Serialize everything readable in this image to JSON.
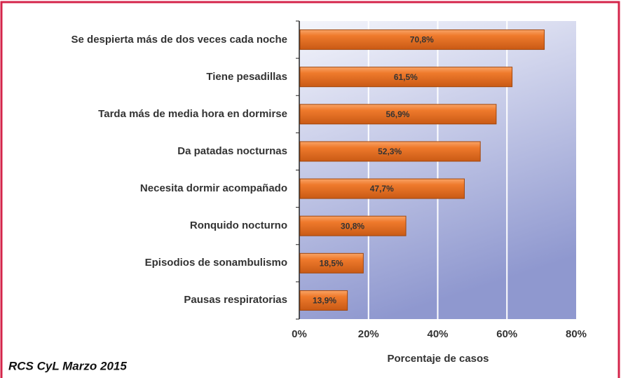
{
  "chart_data": {
    "type": "bar",
    "orientation": "horizontal",
    "categories": [
      "Se despierta más de dos veces cada noche",
      "Tiene pesadillas",
      "Tarda más de media hora en dormirse",
      "Da patadas nocturnas",
      "Necesita dormir acompañado",
      "Ronquido nocturno",
      "Episodios de sonambulismo",
      "Pausas respiratorias"
    ],
    "values": [
      70.8,
      61.5,
      56.9,
      52.3,
      47.7,
      30.8,
      18.5,
      13.9
    ],
    "value_labels": [
      "70,8%",
      "61,5%",
      "56,9%",
      "52,3%",
      "47,7%",
      "30,8%",
      "18,5%",
      "13,9%"
    ],
    "color": "#ef7a2c",
    "xlim": [
      0,
      80
    ],
    "xticks": [
      {
        "value": 0,
        "label": "0%"
      },
      {
        "value": 20,
        "label": "20%"
      },
      {
        "value": 40,
        "label": "40%"
      },
      {
        "value": 60,
        "label": "60%"
      },
      {
        "value": 80,
        "label": "80%"
      }
    ],
    "grid": true,
    "xlabel": "Porcentaje de casos",
    "source": "RCS CyL Marzo 2015"
  }
}
